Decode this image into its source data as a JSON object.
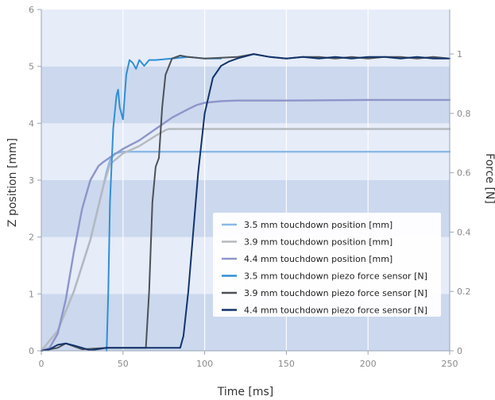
{
  "chart_data": {
    "type": "line",
    "xlabel": "Time [ms]",
    "ylabel_left": "Z position [mm]",
    "ylabel_right": "Force [N]",
    "xlim": [
      0,
      250
    ],
    "ylim_left": [
      0,
      6
    ],
    "ylim_right": [
      0,
      1.15
    ],
    "x_ticks": [
      0,
      50,
      100,
      150,
      200,
      250
    ],
    "y_left_ticks": [
      0,
      1,
      2,
      3,
      4,
      5,
      6
    ],
    "y_right_ticks": [
      0,
      0.2,
      0.4,
      0.6,
      0.8,
      1
    ],
    "x_tick_labels": [
      "0",
      "50",
      "100",
      "150",
      "200",
      "250"
    ],
    "y_left_tick_labels": [
      "0",
      "1",
      "2",
      "3",
      "4",
      "5",
      "6"
    ],
    "y_right_tick_labels": [
      "0",
      "0.2",
      "0.4",
      "0.6",
      "0.8",
      "1"
    ],
    "grid": true,
    "legend_position": "bottom-right",
    "colors": {
      "band_light": "#e6ecf8",
      "band_dark": "#cbd8ee",
      "axis": "#9aa5b5"
    },
    "series": [
      {
        "name": "3.5 mm touchdown position [mm]",
        "axis": "left",
        "color": "#8bb8e6",
        "x": [
          0,
          10,
          20,
          30,
          38,
          40,
          42,
          45,
          50,
          100,
          150,
          200,
          250
        ],
        "y": [
          0.0,
          0.35,
          1.05,
          1.95,
          2.9,
          3.15,
          3.35,
          3.47,
          3.5,
          3.5,
          3.5,
          3.5,
          3.5
        ]
      },
      {
        "name": "3.9 mm touchdown position [mm]",
        "axis": "left",
        "color": "#b5b9bf",
        "x": [
          0,
          10,
          20,
          30,
          38,
          42,
          50,
          60,
          70,
          76,
          78,
          100,
          150,
          200,
          250
        ],
        "y": [
          0.0,
          0.35,
          1.05,
          1.95,
          2.9,
          3.28,
          3.47,
          3.6,
          3.78,
          3.88,
          3.9,
          3.9,
          3.9,
          3.9,
          3.9
        ]
      },
      {
        "name": "4.4 mm touchdown position [mm]",
        "axis": "left",
        "color": "#8d95c9",
        "x": [
          0,
          5,
          10,
          15,
          20,
          25,
          30,
          35,
          38,
          42,
          50,
          60,
          70,
          80,
          90,
          95,
          100,
          110,
          120,
          150,
          200,
          250
        ],
        "y": [
          0.0,
          0.05,
          0.3,
          0.9,
          1.75,
          2.5,
          3.0,
          3.25,
          3.32,
          3.4,
          3.55,
          3.7,
          3.9,
          4.1,
          4.25,
          4.32,
          4.36,
          4.39,
          4.4,
          4.4,
          4.41,
          4.41
        ]
      },
      {
        "name": "3.5 mm touchdown piezo force sensor [N]",
        "axis": "right",
        "color": "#2f8fd6",
        "x": [
          40,
          41,
          42,
          44,
          46,
          47,
          48,
          50,
          52,
          54,
          56,
          58,
          60,
          63,
          66,
          70,
          80,
          90,
          100,
          110
        ],
        "y": [
          0.0,
          0.2,
          0.5,
          0.75,
          0.86,
          0.88,
          0.82,
          0.78,
          0.93,
          0.98,
          0.97,
          0.95,
          0.98,
          0.96,
          0.98,
          0.98,
          0.985,
          0.99,
          0.985,
          0.985
        ]
      },
      {
        "name": "3.9 mm touchdown piezo force sensor [N]",
        "axis": "right",
        "color": "#4d5157",
        "x": [
          0,
          10,
          15,
          20,
          25,
          40,
          64,
          66,
          68,
          70,
          72,
          74,
          76,
          80,
          85,
          90,
          100,
          120,
          130,
          140,
          150,
          160,
          170,
          180,
          190,
          200,
          210,
          220,
          230,
          240,
          250
        ],
        "y": [
          0.0,
          0.01,
          0.025,
          0.015,
          0.005,
          0.01,
          0.01,
          0.2,
          0.5,
          0.62,
          0.65,
          0.82,
          0.93,
          0.985,
          0.995,
          0.99,
          0.985,
          0.99,
          1.0,
          0.99,
          0.985,
          0.99,
          0.99,
          0.985,
          0.99,
          0.985,
          0.99,
          0.99,
          0.985,
          0.99,
          0.985
        ]
      },
      {
        "name": "4.4 mm touchdown piezo force sensor [N]",
        "axis": "right",
        "color": "#12336b",
        "x": [
          0,
          5,
          10,
          15,
          20,
          25,
          30,
          40,
          60,
          85,
          87,
          90,
          93,
          96,
          100,
          105,
          110,
          115,
          120,
          130,
          140,
          150,
          160,
          170,
          180,
          190,
          200,
          210,
          220,
          230,
          240,
          250
        ],
        "y": [
          0.0,
          0.005,
          0.02,
          0.025,
          0.018,
          0.01,
          0.002,
          0.01,
          0.01,
          0.01,
          0.05,
          0.2,
          0.4,
          0.6,
          0.8,
          0.92,
          0.96,
          0.975,
          0.985,
          1.0,
          0.99,
          0.985,
          0.99,
          0.985,
          0.99,
          0.985,
          0.99,
          0.99,
          0.985,
          0.99,
          0.985,
          0.985
        ]
      }
    ]
  }
}
